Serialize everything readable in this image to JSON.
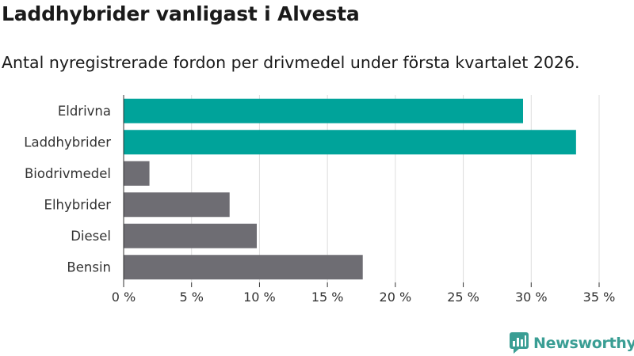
{
  "header": {
    "title": "Laddhybrider vanligast i Alvesta",
    "subtitle": "Antal nyregistrerade fordon per drivmedel under första kvartalet 2026."
  },
  "brand": {
    "name": "Newsworthy"
  },
  "colors": {
    "highlight": "#00a39a",
    "default": "#6e6d73",
    "grid": "#dddddd",
    "axis": "#333333",
    "brand": "#3a9e94"
  },
  "chart_data": {
    "type": "bar",
    "orientation": "horizontal",
    "title": "Laddhybrider vanligast i Alvesta",
    "subtitle": "Antal nyregistrerade fordon per drivmedel under första kvartalet 2026.",
    "categories": [
      "Eldrivna",
      "Laddhybrider",
      "Biodrivmedel",
      "Elhybrider",
      "Diesel",
      "Bensin"
    ],
    "values": [
      29.4,
      33.3,
      1.9,
      7.8,
      9.8,
      17.6
    ],
    "highlighted": [
      true,
      true,
      false,
      false,
      false,
      false
    ],
    "xlim": [
      0,
      35
    ],
    "xticks": [
      0,
      5,
      10,
      15,
      20,
      25,
      30,
      35
    ],
    "tick_labels": [
      "0 %",
      "5 %",
      "10 %",
      "15 %",
      "20 %",
      "25 %",
      "30 %",
      "35 %"
    ],
    "unit": "%",
    "grid": true
  }
}
